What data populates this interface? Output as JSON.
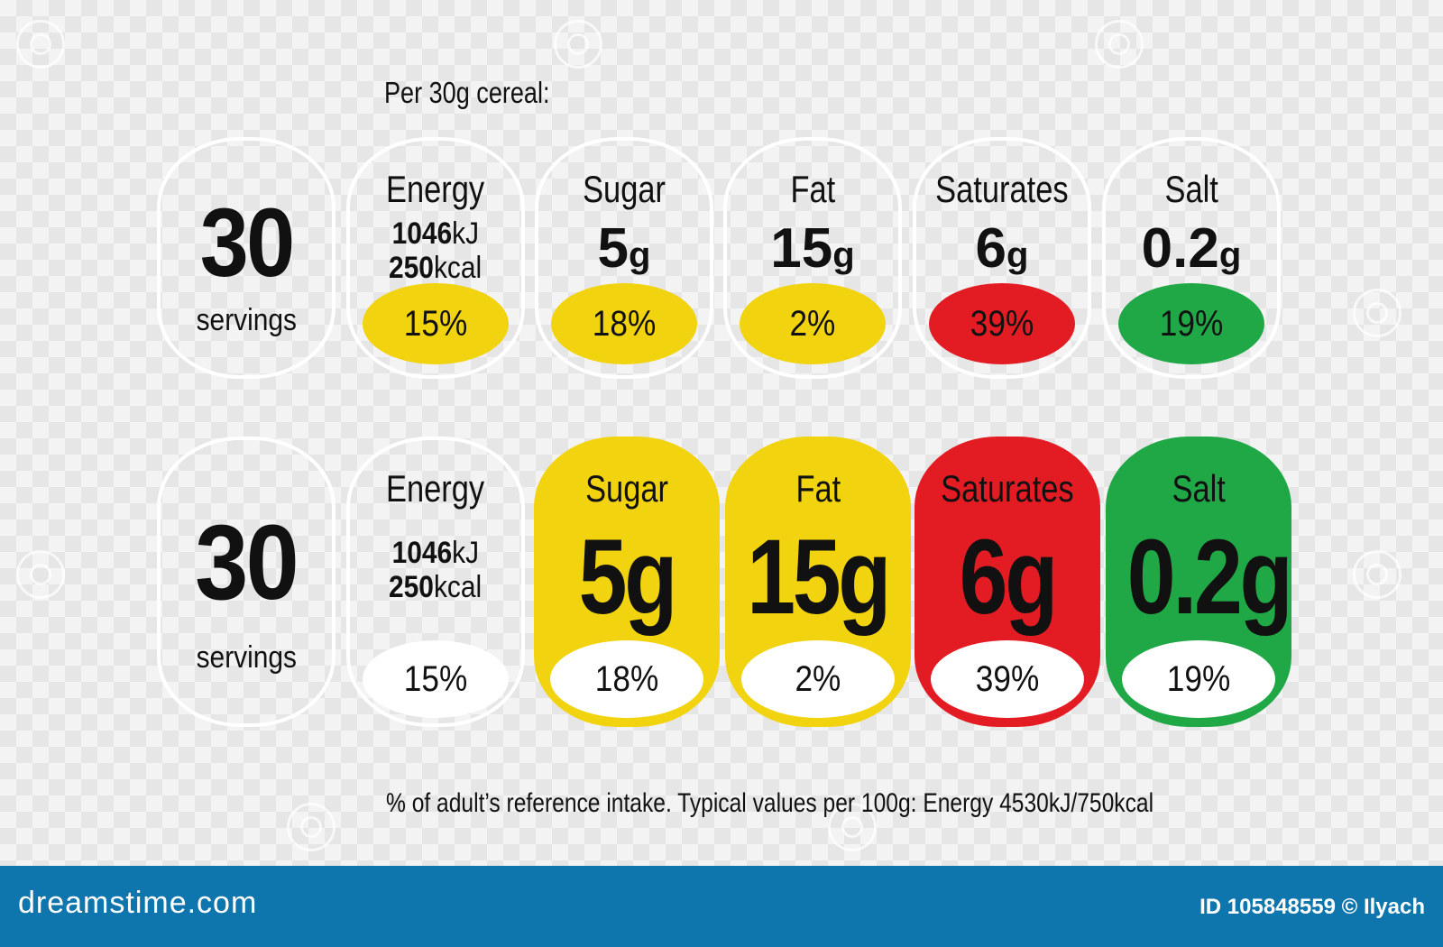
{
  "header": {
    "per_serving": "Per 30g cereal:"
  },
  "servings": {
    "number": "30",
    "label": "servings"
  },
  "energy": {
    "kj_value": "1046",
    "kj_unit": "kJ",
    "kcal_value": "250",
    "kcal_unit": "kcal",
    "percent": "15%",
    "label": "Energy"
  },
  "nutrients": [
    {
      "label": "Sugar",
      "value": "5",
      "unit": "g",
      "full": "5g",
      "percent": "18%",
      "level": "medium",
      "color": "#f2d30f"
    },
    {
      "label": "Fat",
      "value": "15",
      "unit": "g",
      "full": "15g",
      "percent": "2%",
      "level": "medium",
      "color": "#f2d30f"
    },
    {
      "label": "Saturates",
      "value": "6",
      "unit": "g",
      "full": "6g",
      "percent": "39%",
      "level": "high",
      "color": "#e31b23"
    },
    {
      "label": "Salt",
      "value": "0.2",
      "unit": "g",
      "full": "0.2g",
      "percent": "19%",
      "level": "low",
      "color": "#1fa845"
    }
  ],
  "colors": {
    "energy_oval": "#f2d30f",
    "outline": "#ffffff",
    "footer": "#0f75ad"
  },
  "note": "% of adult’s reference intake. Typical values per 100g: Energy 4530kJ/750kcal",
  "footer": {
    "brand": "dreamstime.com",
    "credit": "ID 105848559 © Ilyach"
  }
}
